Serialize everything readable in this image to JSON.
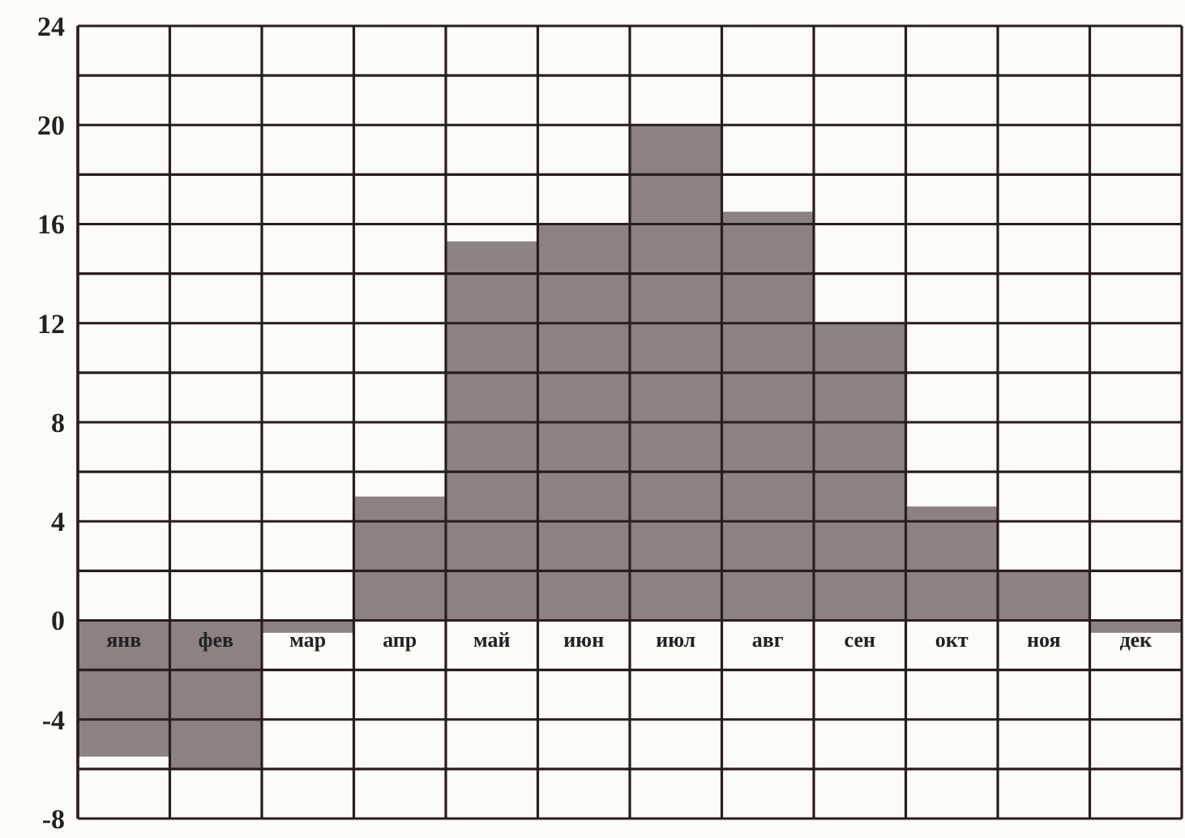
{
  "chart_data": {
    "type": "bar",
    "categories": [
      "янв",
      "фев",
      "мар",
      "апр",
      "май",
      "июн",
      "июл",
      "авг",
      "сен",
      "окт",
      "ноя",
      "дек"
    ],
    "values": [
      -5.5,
      -6,
      -0.5,
      5,
      15.3,
      16,
      20,
      16.5,
      12,
      4.6,
      2,
      -0.5
    ],
    "color": "#8c8282",
    "ylim": [
      -8,
      24
    ],
    "yticks": [
      -8,
      {
        "value": -6,
        "label": null
      },
      -4,
      {
        "value": -2,
        "label": null
      },
      0,
      {
        "value": 2,
        "label": null
      },
      4,
      {
        "value": 6,
        "label": null
      },
      8,
      {
        "value": 10,
        "label": null
      },
      12,
      {
        "value": 14,
        "label": null
      },
      16,
      {
        "value": 18,
        "label": null
      },
      20,
      {
        "value": 22,
        "label": null
      },
      24
    ],
    "grid": true
  }
}
